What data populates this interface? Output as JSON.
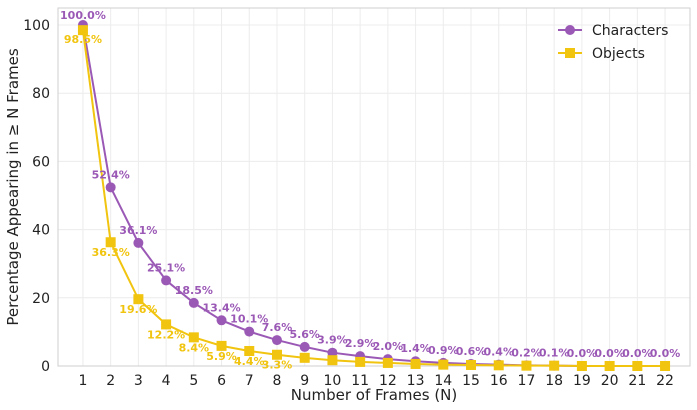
{
  "chart_data": {
    "type": "line",
    "title": "",
    "xlabel": "Number of Frames (N)",
    "ylabel": "Percentage Appearing in ≥ N Frames",
    "x": [
      1,
      2,
      3,
      4,
      5,
      6,
      7,
      8,
      9,
      10,
      11,
      12,
      13,
      14,
      15,
      16,
      17,
      18,
      19,
      20,
      21,
      22
    ],
    "xlim": [
      0.1,
      22.9
    ],
    "ylim": [
      0,
      105
    ],
    "yticks": [
      0,
      20,
      40,
      60,
      80,
      100
    ],
    "grid": true,
    "legend_position": "top-right",
    "series": [
      {
        "name": "Characters",
        "color": "#9b59b6",
        "marker": "circle",
        "values": [
          100.0,
          52.4,
          36.1,
          25.1,
          18.5,
          13.4,
          10.1,
          7.6,
          5.6,
          3.9,
          2.9,
          2.0,
          1.4,
          0.9,
          0.6,
          0.4,
          0.2,
          0.1,
          0.0,
          0.0,
          0.0,
          0.0
        ],
        "labels": [
          "100.0%",
          "52.4%",
          "36.1%",
          "25.1%",
          "18.5%",
          "13.4%",
          "10.1%",
          "7.6%",
          "5.6%",
          "3.9%",
          "2.9%",
          "2.0%",
          "1.4%",
          "0.9%",
          "0.6%",
          "0.4%",
          "0.2%",
          "0.1%",
          "0.0%",
          "0.0%",
          "0.0%",
          "0.0%"
        ]
      },
      {
        "name": "Objects",
        "color": "#f1c40f",
        "marker": "square",
        "values": [
          98.5,
          36.3,
          19.6,
          12.2,
          8.4,
          5.9,
          4.4,
          3.3,
          2.4,
          1.7,
          1.2,
          0.9,
          0.6,
          0.4,
          0.3,
          0.2,
          0.1,
          0.1,
          0.0,
          0.0,
          0.0,
          0.0
        ],
        "labels": [
          "98.5%",
          "36.3%",
          "19.6%",
          "12.2%",
          "8.4%",
          "5.9%",
          "4.4%",
          "3.3%"
        ]
      }
    ]
  }
}
